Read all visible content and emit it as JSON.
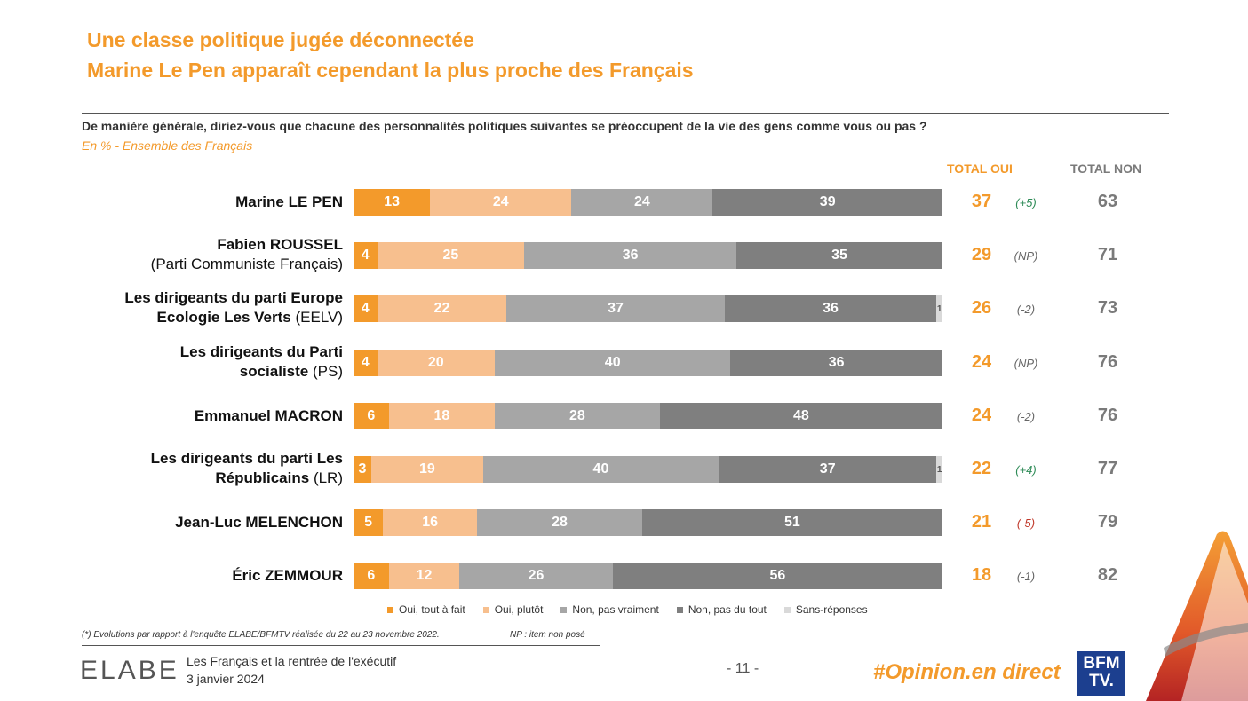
{
  "header": {
    "title_line1": "Une classe politique jugée déconnectée",
    "title_line2": "Marine Le Pen apparaît cependant la plus proche des Français",
    "question": "De manière générale, diriez-vous que chacune des personnalités politiques suivantes se préoccupent de la vie des gens comme vous ou pas ?",
    "subtitle": "En % - Ensemble des Français",
    "total_oui_label": "TOTAL OUI",
    "total_non_label": "TOTAL NON"
  },
  "colors": {
    "oui_tout_a_fait": "#F39A2B",
    "oui_plutot": "#F7BF8E",
    "non_pas_vraiment": "#A6A6A6",
    "non_pas_du_tout": "#7F7F7F",
    "sans_reponses": "#D9D9D9",
    "evo_positive": "#2E8B57",
    "evo_negative": "#C0392B",
    "evo_neutral": "#666666"
  },
  "chart_data": {
    "type": "bar",
    "orientation": "horizontal",
    "stacked": true,
    "title": "De manière générale, diriez-vous que chacune des personnalités politiques suivantes se préoccupent de la vie des gens comme vous ou pas ?",
    "unit": "%",
    "xlim": [
      0,
      100
    ],
    "series_names": [
      "Oui, tout à fait",
      "Oui, plutôt",
      "Non, pas vraiment",
      "Non, pas du tout",
      "Sans-réponses"
    ],
    "rows": [
      {
        "label_bold": "Marine LE PEN",
        "label_extra": "",
        "values": [
          13,
          24,
          24,
          39,
          0
        ],
        "total_oui": "37",
        "evolution": "(+5)",
        "evo_type": "positive",
        "total_non": "63"
      },
      {
        "label_bold": "Fabien ROUSSEL",
        "label_extra": "(Parti Communiste Français)",
        "values": [
          4,
          25,
          36,
          35,
          0
        ],
        "total_oui": "29",
        "evolution": "(NP)",
        "evo_type": "neutral",
        "total_non": "71"
      },
      {
        "label_bold": "Les dirigeants du parti Europe Ecologie Les Verts",
        "label_extra": "(EELV)",
        "values": [
          4,
          22,
          37,
          36,
          1
        ],
        "total_oui": "26",
        "evolution": "(-2)",
        "evo_type": "neutral",
        "total_non": "73"
      },
      {
        "label_bold": "Les dirigeants du Parti socialiste",
        "label_extra": "(PS)",
        "values": [
          4,
          20,
          40,
          36,
          0
        ],
        "total_oui": "24",
        "evolution": "(NP)",
        "evo_type": "neutral",
        "total_non": "76"
      },
      {
        "label_bold": "Emmanuel MACRON",
        "label_extra": "",
        "values": [
          6,
          18,
          28,
          48,
          0
        ],
        "total_oui": "24",
        "evolution": "(-2)",
        "evo_type": "neutral",
        "total_non": "76"
      },
      {
        "label_bold": "Les dirigeants du parti Les Républicains",
        "label_extra": "(LR)",
        "values": [
          3,
          19,
          40,
          37,
          1
        ],
        "total_oui": "22",
        "evolution": "(+4)",
        "evo_type": "positive",
        "total_non": "77"
      },
      {
        "label_bold": "Jean-Luc MELENCHON",
        "label_extra": "",
        "values": [
          5,
          16,
          28,
          51,
          0
        ],
        "total_oui": "21",
        "evolution": "(-5)",
        "evo_type": "negative",
        "total_non": "79"
      },
      {
        "label_bold": "Éric ZEMMOUR",
        "label_extra": "",
        "values": [
          6,
          12,
          26,
          56,
          0
        ],
        "total_oui": "18",
        "evolution": "(-1)",
        "evo_type": "neutral",
        "total_non": "82"
      }
    ]
  },
  "legend": [
    {
      "label": "Oui, tout à fait",
      "color": "#F39A2B"
    },
    {
      "label": "Oui, plutôt",
      "color": "#F7BF8E"
    },
    {
      "label": "Non, pas vraiment",
      "color": "#A6A6A6"
    },
    {
      "label": "Non, pas du tout",
      "color": "#7F7F7F"
    },
    {
      "label": "Sans-réponses",
      "color": "#D9D9D9"
    }
  ],
  "footer": {
    "footnote": "(*) Evolutions par rapport à l'enquête ELABE/BFMTV réalisée du 22 au 23 novembre 2022.",
    "np_note": "NP : item non posé",
    "study_title": "Les Français et la rentrée de l'exécutif",
    "date": "3 janvier 2024",
    "page": "- 11 -",
    "hashtag": "#Opinion.en direct",
    "elabe_logo": "ELABE",
    "bfm_logo_line1": "BFM",
    "bfm_logo_line2": "TV."
  }
}
